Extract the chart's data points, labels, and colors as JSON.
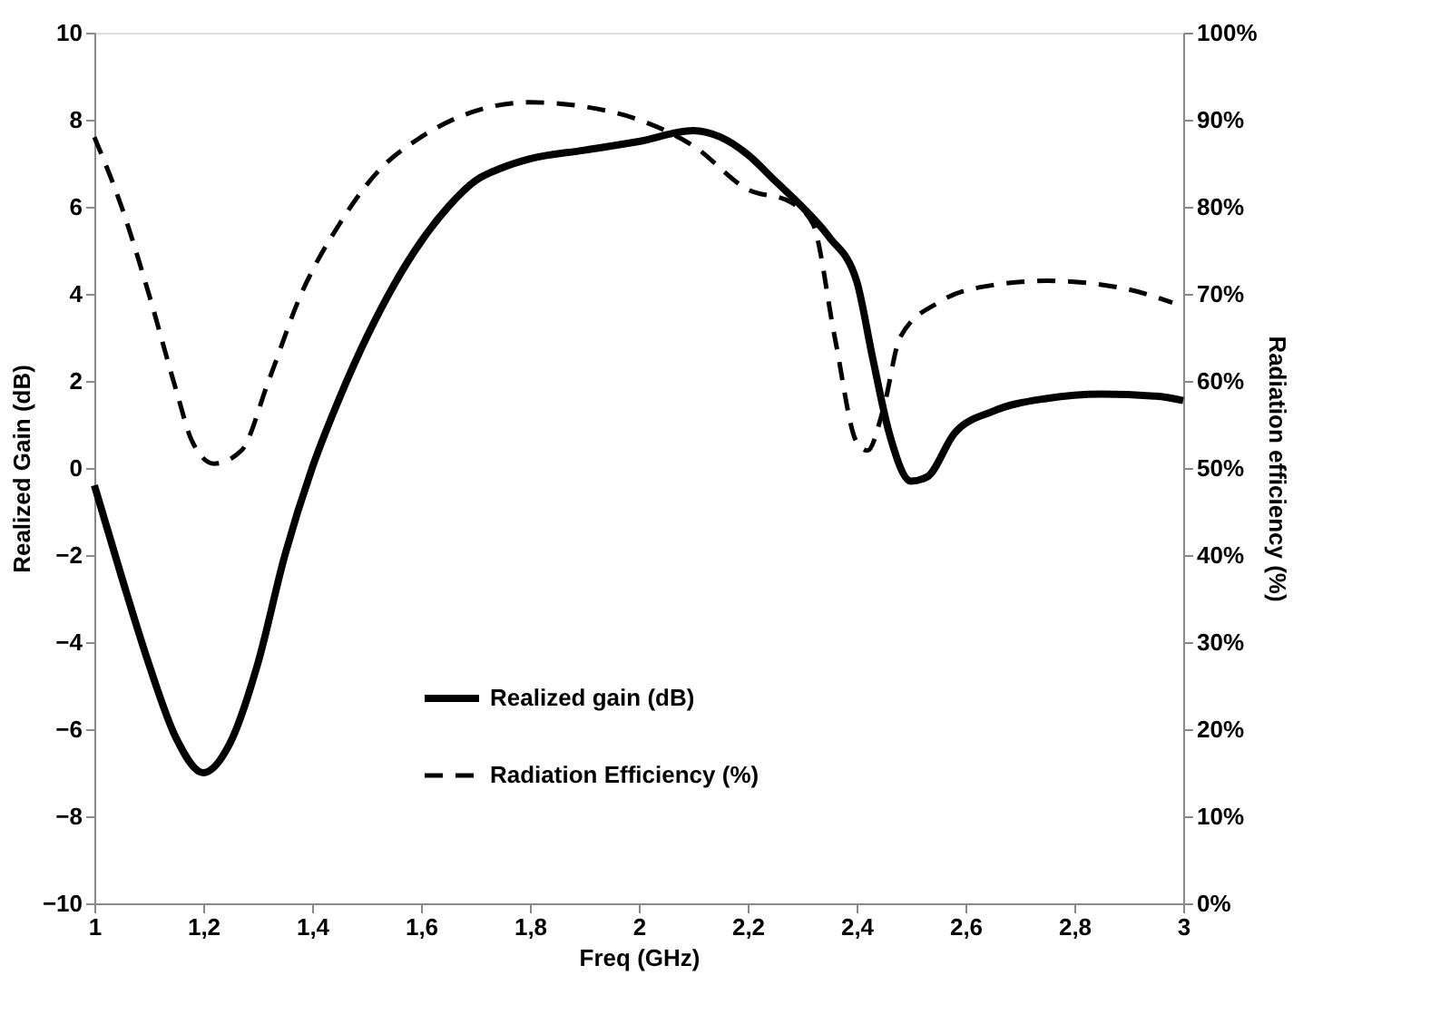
{
  "chart_data": {
    "type": "line",
    "xlabel": "Freq (GHz)",
    "ylabel": "Realized Gain (dB)",
    "y2label": "Radiation efficiency (%)",
    "xlim": [
      1,
      3
    ],
    "xticks": [
      {
        "value": 1,
        "label": "1"
      },
      {
        "value": 1.2,
        "label": "1,2"
      },
      {
        "value": 1.4,
        "label": "1,4"
      },
      {
        "value": 1.6,
        "label": "1,6"
      },
      {
        "value": 1.8,
        "label": "1,8"
      },
      {
        "value": 2,
        "label": "2"
      },
      {
        "value": 2.2,
        "label": "2,2"
      },
      {
        "value": 2.4,
        "label": "2,4"
      },
      {
        "value": 2.6,
        "label": "2,6"
      },
      {
        "value": 2.8,
        "label": "2,8"
      },
      {
        "value": 3,
        "label": "3"
      }
    ],
    "ylim": [
      -10,
      10
    ],
    "yticks": [
      -10,
      -8,
      -6,
      -4,
      -2,
      0,
      2,
      4,
      6,
      8,
      10
    ],
    "y2lim": [
      0,
      100
    ],
    "y2ticks": [
      {
        "value": 0,
        "label": "0%"
      },
      {
        "value": 10,
        "label": "10%"
      },
      {
        "value": 20,
        "label": "20%"
      },
      {
        "value": 30,
        "label": "30%"
      },
      {
        "value": 40,
        "label": "40%"
      },
      {
        "value": 50,
        "label": "50%"
      },
      {
        "value": 60,
        "label": "60%"
      },
      {
        "value": 70,
        "label": "70%"
      },
      {
        "value": 80,
        "label": "80%"
      },
      {
        "value": 90,
        "label": "90%"
      },
      {
        "value": 100,
        "label": "100%"
      }
    ],
    "grid": false,
    "legend": "bottom",
    "marker": "none",
    "series": [
      {
        "name": "Realized gain (dB)",
        "color": "#000000",
        "line_style": "solid",
        "x": [
          1,
          1.05,
          1.1,
          1.15,
          1.2,
          1.25,
          1.3,
          1.35,
          1.4,
          1.45,
          1.5,
          1.55,
          1.6,
          1.65,
          1.7,
          1.75,
          1.8,
          1.9,
          2.0,
          2.1,
          2.15,
          2.2,
          2.25,
          2.3,
          2.35,
          2.4,
          2.43,
          2.46,
          2.5,
          2.53,
          2.58,
          2.65,
          2.75,
          2.85,
          2.95,
          3
        ],
        "values": [
          -0.4,
          -2.5,
          -4.5,
          -6.2,
          -7.0,
          -6.3,
          -4.5,
          -2.0,
          0.0,
          1.6,
          3.0,
          4.2,
          5.2,
          6.0,
          6.6,
          6.9,
          7.1,
          7.3,
          7.5,
          7.75,
          7.6,
          7.2,
          6.6,
          6.0,
          5.3,
          4.3,
          2.5,
          0.8,
          -0.3,
          -0.2,
          0.8,
          1.3,
          1.6,
          1.7,
          1.65,
          1.55
        ]
      },
      {
        "name": "Radiation Efficiency (%)",
        "color": "#000000",
        "line_style": "dashed",
        "axis": "y2",
        "x": [
          1,
          1.05,
          1.1,
          1.15,
          1.18,
          1.22,
          1.27,
          1.32,
          1.38,
          1.45,
          1.52,
          1.6,
          1.7,
          1.8,
          1.9,
          2.0,
          2.1,
          2.2,
          2.28,
          2.32,
          2.36,
          2.4,
          2.42,
          2.45,
          2.48,
          2.55,
          2.65,
          2.75,
          2.9,
          2.98
        ],
        "values": [
          88,
          80,
          70,
          59,
          53,
          50.5,
          52,
          60,
          70,
          78,
          84,
          88,
          91,
          92,
          91.5,
          90,
          87,
          82,
          80.5,
          78,
          65,
          53,
          52,
          57,
          65,
          69,
          71,
          71.5,
          70.5,
          69
        ]
      }
    ]
  }
}
